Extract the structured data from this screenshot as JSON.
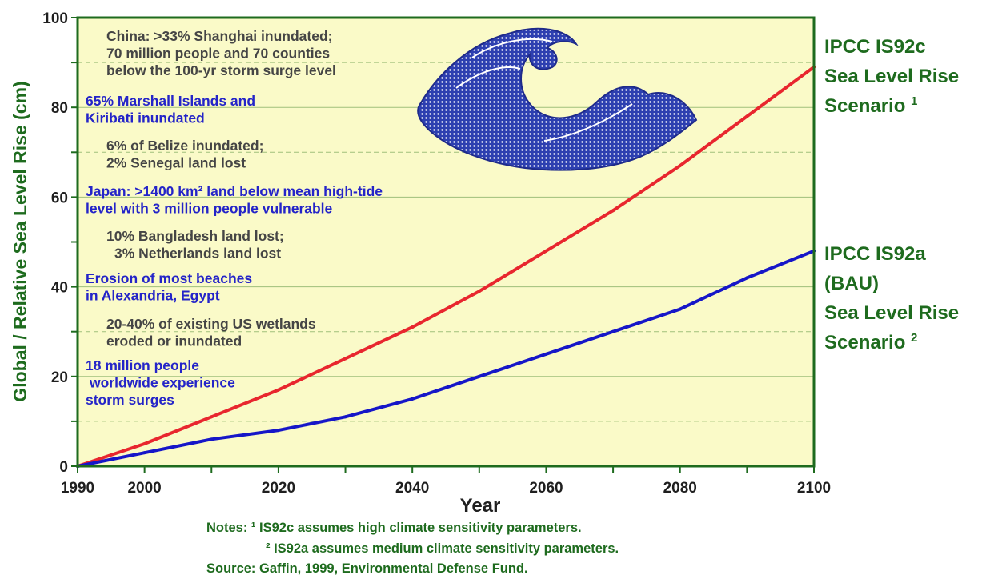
{
  "chart_data": {
    "type": "line",
    "xlabel": "Year",
    "ylabel": "Global / Relative Sea Level Rise (cm)",
    "xlim": [
      1990,
      2100
    ],
    "ylim": [
      0,
      100
    ],
    "x_ticks": [
      "1990",
      "2000",
      "2020",
      "2040",
      "2060",
      "2080",
      "2100"
    ],
    "y_ticks": [
      "0",
      "20",
      "40",
      "60",
      "80",
      "100"
    ],
    "grid": true,
    "series": [
      {
        "color": "#e8262e",
        "x": [
          1990,
          2000,
          2010,
          2020,
          2030,
          2040,
          2050,
          2060,
          2070,
          2080,
          2090,
          2100
        ],
        "values": [
          0,
          5,
          11,
          17,
          24,
          31,
          39,
          48,
          57,
          67,
          78,
          89
        ],
        "label": {
          "lines": [
            "IPCC IS92c",
            "Sea Level Rise",
            "Scenario "
          ],
          "sup": "1"
        }
      },
      {
        "color": "#1616c8",
        "x": [
          1990,
          2000,
          2010,
          2020,
          2030,
          2040,
          2050,
          2060,
          2070,
          2080,
          2090,
          2100
        ],
        "values": [
          0,
          3,
          6,
          8,
          11,
          15,
          20,
          25,
          30,
          35,
          42,
          48
        ],
        "label": {
          "lines": [
            "IPCC IS92a",
            "(BAU)",
            "Sea Level Rise",
            "Scenario "
          ],
          "sup": "2"
        }
      }
    ],
    "annotations": [
      {
        "color": "gray",
        "lines": [
          "China: >33% Shanghai inundated;",
          "70 million people and 70 counties",
          "below the 100-yr storm surge level"
        ]
      },
      {
        "color": "blue",
        "lines": [
          "65% Marshall Islands and",
          "Kiribati inundated"
        ]
      },
      {
        "color": "gray",
        "lines": [
          "6% of Belize inundated;",
          "2% Senegal land lost"
        ]
      },
      {
        "color": "blue",
        "lines": [
          "Japan: >1400 km² land below mean high-tide",
          "level with 3 million people vulnerable"
        ]
      },
      {
        "color": "gray",
        "lines": [
          "10% Bangladesh land lost;",
          "3% Netherlands land lost"
        ]
      },
      {
        "color": "blue",
        "lines": [
          "Erosion of most beaches",
          "in Alexandria, Egypt"
        ]
      },
      {
        "color": "gray",
        "lines": [
          "20-40% of existing US wetlands",
          "eroded or inundated"
        ]
      },
      {
        "color": "blue",
        "lines": [
          "18 million people",
          "worldwide experience",
          "storm surges"
        ]
      }
    ],
    "notes": [
      "Notes: ¹ IS92c assumes high climate sensitivity parameters.",
      "² IS92a assumes medium climate sensitivity parameters.",
      "Source: Gaffin, 1999, Environmental Defense Fund."
    ],
    "illustration": "wave-icon"
  }
}
